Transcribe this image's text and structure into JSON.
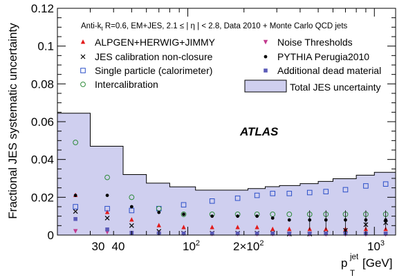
{
  "chart_data": {
    "type": "scatter",
    "x_scale": "log",
    "xlim": [
      20,
      1300
    ],
    "ylim": [
      0,
      0.12
    ],
    "xlabel": "p",
    "xlabel_sup": "jet",
    "xlabel_sub": "T",
    "xlabel_unit": "[GeV]",
    "ylabel": "Fractional JES systematic uncertainty",
    "x_tick_labels": [
      "30",
      "40",
      "10",
      "2",
      "×10",
      "2",
      "10",
      "3"
    ],
    "y_ticks": [
      0,
      0.02,
      0.04,
      0.06,
      0.08,
      0.1,
      0.12
    ],
    "y_tick_labels": [
      "0",
      "0.02",
      "0.04",
      "0.06",
      "0.08",
      "0.1",
      "0.12"
    ],
    "annotation": {
      "part1": "Anti-k",
      "sub_t": "t",
      "part2": " R=0.6, EM+JES, 2.1 ≤ | η | < 2.8, Data 2010 + Monte Carlo QCD jets"
    },
    "experiment_label": "ATLAS",
    "legend_placement": "top",
    "bin_edges": [
      20,
      30,
      45,
      60,
      80,
      110,
      160,
      210,
      260,
      310,
      400,
      500,
      600,
      800,
      1000,
      1300
    ],
    "bin_centers": [
      25,
      37,
      50,
      70,
      95,
      135,
      185,
      235,
      285,
      350,
      450,
      550,
      700,
      900,
      1150
    ],
    "total_uncertainty": [
      0.0645,
      0.047,
      0.032,
      0.0275,
      0.0255,
      0.0238,
      0.0238,
      0.0246,
      0.0256,
      0.0262,
      0.0272,
      0.0284,
      0.0298,
      0.0317,
      0.0332
    ],
    "series": [
      {
        "name": "ALPGEN+HERWIG+JIMMY",
        "marker": "triangle-up",
        "color": "#e21b1b",
        "values": [
          0.021,
          0.012,
          0.008,
          0.005,
          0.004,
          0.004,
          0.004,
          0.004,
          0.003,
          0.003,
          0.003,
          0.003,
          0.003,
          0.003,
          0.003
        ]
      },
      {
        "name": "JES calibration non-closure",
        "marker": "cross",
        "color": "#000000",
        "values": [
          0.0125,
          0.009,
          0.005,
          0.002,
          0.001,
          0.001,
          0.001,
          0.001,
          0.001,
          0.0005,
          0.0005,
          0.001,
          0.0025,
          0.0055,
          0.0065
        ]
      },
      {
        "name": "Single particle (calorimeter)",
        "marker": "open-square",
        "color": "#2b4fc8",
        "values": [
          0.015,
          0.014,
          0.013,
          0.014,
          0.016,
          0.018,
          0.0195,
          0.021,
          0.022,
          0.022,
          0.0225,
          0.023,
          0.024,
          0.026,
          0.027
        ]
      },
      {
        "name": "Intercalibration",
        "marker": "open-circle",
        "color": "#2e8b3a",
        "values": [
          0.049,
          0.0305,
          0.02,
          0.014,
          0.011,
          0.011,
          0.011,
          0.011,
          0.011,
          0.011,
          0.011,
          0.011,
          0.011,
          0.011,
          0.011
        ]
      },
      {
        "name": "Noise Thresholds",
        "marker": "triangle-down",
        "color": "#c2398e",
        "values": [
          0.002,
          0.0015,
          0.001,
          0.0008,
          0.0006,
          0.0005,
          0.0005,
          0.0004,
          0.0004,
          0.0003,
          0.0003,
          0.0003,
          0.0003,
          0.0003,
          0.0003
        ]
      },
      {
        "name": "PYTHIA Perugia2010",
        "marker": "dot",
        "color": "#000000",
        "values": [
          0.021,
          0.021,
          0.015,
          0.012,
          0.011,
          0.01,
          0.01,
          0.01,
          0.009,
          0.008,
          0.008,
          0.008,
          0.008,
          0.008,
          0.008
        ]
      },
      {
        "name": "Additional dead material",
        "marker": "filled-square",
        "color": "#5b5bb8",
        "values": [
          0.0085,
          0.003,
          0.0012,
          0.0009,
          0.0008,
          0.0008,
          0.0008,
          0.0008,
          0.0008,
          0.0008,
          0.0008,
          0.0008,
          0.0008,
          0.0008,
          0.0008
        ]
      }
    ],
    "total_series_name": "Total JES uncertainty",
    "total_fill_color": "#cfcfef",
    "total_edge_color": "#000000"
  }
}
